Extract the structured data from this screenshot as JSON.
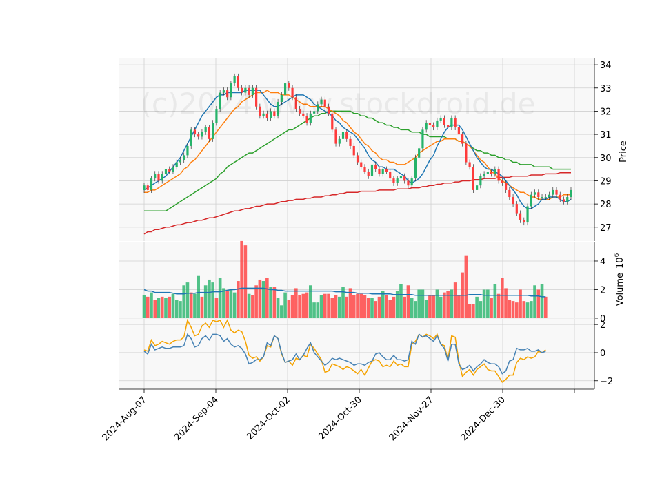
{
  "watermark": "(c)2024 www.stockdroid.de",
  "colors": {
    "up": "#26b36a",
    "down": "#ff3b3b",
    "ma_short": "#1f77b4",
    "ma_mid": "#ff7f0e",
    "ma_long": "#2ca02c",
    "ma_200": "#d62728",
    "vol_ma": "#1f77b4",
    "osc_a": "#f5a300",
    "osc_b": "#4682b4",
    "panel_bg": "#f8f8f8",
    "grid": "#d0d0d0"
  },
  "chart_data": [
    {
      "type": "candlestick",
      "panel": "price",
      "ylabel": "Price",
      "ylim": [
        26.4,
        34.3
      ],
      "yticks": [
        27,
        28,
        29,
        30,
        31,
        32,
        33,
        34
      ],
      "grid": true,
      "x_tick_labels": [
        "2024-Aug-07",
        "2024-Sep-04",
        "2024-Oct-02",
        "2024-Oct-30",
        "2024-Nov-27",
        "2024-Dec-30"
      ],
      "close": [
        28.8,
        28.6,
        29.1,
        29.3,
        29.0,
        29.3,
        29.5,
        29.4,
        29.6,
        29.8,
        29.9,
        30.1,
        30.5,
        31.2,
        31.0,
        30.9,
        31.1,
        31.3,
        30.8,
        31.5,
        32.1,
        32.8,
        32.9,
        32.6,
        33.2,
        33.5,
        33.0,
        32.8,
        33.0,
        32.7,
        33.0,
        32.2,
        31.8,
        31.9,
        31.7,
        32.0,
        31.8,
        32.4,
        32.7,
        33.2,
        33.0,
        32.6,
        32.1,
        31.9,
        31.8,
        31.5,
        31.9,
        32.0,
        32.3,
        32.5,
        32.2,
        31.9,
        31.2,
        30.6,
        30.8,
        31.1,
        30.8,
        30.5,
        30.1,
        29.8,
        29.6,
        29.4,
        29.2,
        29.7,
        29.5,
        29.3,
        29.5,
        29.4,
        29.1,
        28.9,
        29.1,
        29.2,
        29.0,
        28.8,
        29.1,
        30.0,
        30.4,
        31.2,
        31.5,
        31.4,
        31.3,
        31.6,
        31.7,
        31.4,
        31.3,
        31.7,
        31.3,
        31.0,
        30.6,
        29.8,
        29.6,
        28.6,
        28.8,
        29.2,
        29.3,
        29.4,
        29.3,
        29.5,
        29.0,
        28.9,
        28.6,
        28.3,
        28.0,
        27.6,
        27.3,
        27.2,
        27.9,
        28.4,
        28.5,
        28.3,
        28.3,
        28.3,
        28.4,
        28.6,
        28.4,
        28.2,
        28.1,
        28.3,
        28.6
      ],
      "open": [
        28.6,
        28.8,
        28.6,
        29.1,
        29.3,
        29.0,
        29.3,
        29.5,
        29.4,
        29.6,
        29.8,
        29.9,
        30.1,
        30.5,
        31.2,
        31.0,
        30.9,
        31.1,
        31.3,
        30.8,
        31.5,
        32.1,
        32.8,
        32.9,
        32.6,
        33.2,
        33.5,
        33.0,
        32.8,
        33.0,
        32.7,
        33.0,
        32.2,
        31.8,
        31.9,
        31.7,
        32.0,
        31.8,
        32.4,
        32.7,
        33.2,
        33.0,
        32.6,
        32.1,
        31.9,
        31.8,
        31.5,
        31.9,
        32.0,
        32.3,
        32.5,
        32.2,
        31.9,
        31.2,
        30.6,
        30.8,
        31.1,
        30.8,
        30.5,
        30.1,
        29.8,
        29.6,
        29.4,
        29.2,
        29.7,
        29.5,
        29.3,
        29.5,
        29.4,
        29.1,
        28.9,
        29.1,
        29.2,
        29.0,
        28.8,
        29.1,
        30.0,
        30.4,
        31.2,
        31.5,
        31.4,
        31.3,
        31.6,
        31.7,
        31.4,
        31.3,
        31.7,
        31.3,
        31.0,
        30.6,
        29.8,
        29.6,
        28.6,
        28.8,
        29.2,
        29.3,
        29.4,
        29.3,
        29.5,
        29.0,
        28.9,
        28.6,
        28.3,
        28.0,
        27.6,
        27.3,
        27.2,
        27.9,
        28.4,
        28.5,
        28.3,
        28.3,
        28.3,
        28.4,
        28.6,
        28.4,
        28.2,
        28.1,
        28.3
      ],
      "ma_short": [
        28.6,
        28.7,
        28.8,
        28.9,
        29.0,
        29.1,
        29.2,
        29.4,
        29.6,
        29.8,
        30.0,
        30.3,
        30.6,
        30.9,
        31.2,
        31.5,
        31.8,
        32.0,
        32.2,
        32.4,
        32.6,
        32.7,
        32.7,
        32.8,
        32.8,
        32.8,
        32.8,
        32.8,
        32.9,
        32.9,
        32.9,
        32.9,
        32.9,
        32.7,
        32.5,
        32.3,
        32.2,
        32.2,
        32.3,
        32.4,
        32.5,
        32.6,
        32.7,
        32.7,
        32.7,
        32.6,
        32.5,
        32.3,
        32.2,
        32.1,
        32.0,
        31.9,
        31.8,
        31.6,
        31.5,
        31.3,
        31.2,
        31.1,
        31.0,
        30.8,
        30.6,
        30.4,
        30.1,
        29.9,
        29.8,
        29.6,
        29.6,
        29.5,
        29.5,
        29.5,
        29.4,
        29.3,
        29.2,
        29.0,
        28.9,
        29.0,
        29.1,
        29.3,
        29.6,
        29.9,
        30.1,
        30.5,
        30.8,
        31.1,
        31.3,
        31.4,
        31.4,
        31.4,
        31.2,
        30.9,
        30.6,
        30.3,
        30.0,
        29.8,
        29.6,
        29.5,
        29.5,
        29.4,
        29.3,
        29.2,
        29.0,
        28.8,
        28.6,
        28.4,
        28.1,
        27.9,
        27.8,
        27.8,
        27.9,
        28.0,
        28.2,
        28.2,
        28.3,
        28.3,
        28.3,
        28.2,
        28.1,
        28.1,
        28.2
      ],
      "ma_mid": [
        28.5,
        28.5,
        28.6,
        28.6,
        28.7,
        28.8,
        28.9,
        29.0,
        29.1,
        29.2,
        29.3,
        29.5,
        29.6,
        29.8,
        29.9,
        30.1,
        30.3,
        30.5,
        30.7,
        30.9,
        31.1,
        31.3,
        31.5,
        31.7,
        31.9,
        32.1,
        32.2,
        32.4,
        32.5,
        32.6,
        32.7,
        32.8,
        32.8,
        32.8,
        32.9,
        32.8,
        32.8,
        32.8,
        32.7,
        32.7,
        32.7,
        32.6,
        32.5,
        32.4,
        32.3,
        32.3,
        32.2,
        32.2,
        32.2,
        32.2,
        32.2,
        32.1,
        32.0,
        31.9,
        31.8,
        31.6,
        31.5,
        31.3,
        31.1,
        31.0,
        30.8,
        30.6,
        30.5,
        30.3,
        30.2,
        30.0,
        29.9,
        29.9,
        29.8,
        29.8,
        29.7,
        29.7,
        29.7,
        29.8,
        29.9,
        30.0,
        30.2,
        30.3,
        30.4,
        30.5,
        30.6,
        30.7,
        30.7,
        30.8,
        30.8,
        30.8,
        30.8,
        30.7,
        30.7,
        30.6,
        30.5,
        30.3,
        30.1,
        29.9,
        29.8,
        29.6,
        29.4,
        29.3,
        29.1,
        29.0,
        28.9,
        28.8,
        28.7,
        28.6,
        28.5,
        28.5,
        28.4,
        28.3,
        28.3,
        28.2,
        28.2,
        28.2,
        28.2,
        28.3,
        28.3,
        28.3,
        28.4,
        28.4,
        28.4
      ],
      "ma_long": [
        27.7,
        27.7,
        27.7,
        27.7,
        27.7,
        27.7,
        27.7,
        27.8,
        27.9,
        28.0,
        28.1,
        28.2,
        28.3,
        28.4,
        28.5,
        28.6,
        28.7,
        28.8,
        28.9,
        29.0,
        29.1,
        29.3,
        29.4,
        29.6,
        29.7,
        29.8,
        29.9,
        30.0,
        30.1,
        30.2,
        30.2,
        30.3,
        30.4,
        30.5,
        30.6,
        30.7,
        30.8,
        30.9,
        31.0,
        31.1,
        31.2,
        31.2,
        31.3,
        31.4,
        31.5,
        31.6,
        31.7,
        31.8,
        31.8,
        31.9,
        31.9,
        32.0,
        32.0,
        32.0,
        32.0,
        32.0,
        32.0,
        32.0,
        31.9,
        31.9,
        31.8,
        31.8,
        31.7,
        31.7,
        31.6,
        31.5,
        31.5,
        31.4,
        31.4,
        31.3,
        31.3,
        31.2,
        31.2,
        31.2,
        31.1,
        31.1,
        31.1,
        31.0,
        31.0,
        30.9,
        30.9,
        30.9,
        30.9,
        30.9,
        30.8,
        30.8,
        30.8,
        30.7,
        30.7,
        30.6,
        30.5,
        30.4,
        30.3,
        30.3,
        30.2,
        30.2,
        30.1,
        30.1,
        30.0,
        30.0,
        29.9,
        29.9,
        29.8,
        29.8,
        29.7,
        29.7,
        29.7,
        29.7,
        29.6,
        29.6,
        29.6,
        29.6,
        29.6,
        29.5,
        29.5,
        29.5,
        29.5,
        29.5,
        29.5
      ],
      "ma_200": [
        26.7,
        26.8,
        26.8,
        26.9,
        26.9,
        26.95,
        27.0,
        27.0,
        27.05,
        27.1,
        27.1,
        27.15,
        27.2,
        27.2,
        27.25,
        27.3,
        27.3,
        27.35,
        27.4,
        27.4,
        27.45,
        27.5,
        27.55,
        27.6,
        27.65,
        27.7,
        27.7,
        27.75,
        27.8,
        27.8,
        27.85,
        27.9,
        27.9,
        27.95,
        28.0,
        28.0,
        28.0,
        28.05,
        28.1,
        28.1,
        28.15,
        28.15,
        28.2,
        28.2,
        28.2,
        28.25,
        28.25,
        28.3,
        28.3,
        28.3,
        28.35,
        28.35,
        28.4,
        28.4,
        28.45,
        28.45,
        28.5,
        28.5,
        28.5,
        28.5,
        28.55,
        28.55,
        28.55,
        28.55,
        28.55,
        28.6,
        28.6,
        28.6,
        28.6,
        28.6,
        28.65,
        28.65,
        28.65,
        28.65,
        28.7,
        28.7,
        28.7,
        28.75,
        28.75,
        28.8,
        28.8,
        28.85,
        28.85,
        28.9,
        28.9,
        28.9,
        28.95,
        28.95,
        29.0,
        29.0,
        29.0,
        29.05,
        29.05,
        29.05,
        29.1,
        29.1,
        29.1,
        29.1,
        29.15,
        29.15,
        29.15,
        29.15,
        29.2,
        29.2,
        29.2,
        29.2,
        29.2,
        29.25,
        29.25,
        29.25,
        29.25,
        29.3,
        29.3,
        29.3,
        29.3,
        29.35,
        29.35,
        29.35,
        29.35
      ]
    },
    {
      "type": "bar",
      "panel": "volume",
      "ylabel": "Volume",
      "ylabel_exponent": "10^6",
      "ylim": [
        0,
        5.3
      ],
      "yticks": [
        0,
        2,
        4
      ],
      "volume": [
        1.6,
        1.5,
        1.8,
        1.3,
        1.4,
        1.5,
        1.4,
        1.5,
        1.7,
        1.3,
        1.2,
        2.3,
        2.5,
        1.8,
        1.7,
        3.0,
        1.5,
        2.3,
        2.7,
        2.5,
        1.4,
        2.8,
        2.1,
        1.9,
        2.0,
        1.8,
        2.6,
        5.4,
        5.1,
        1.7,
        1.6,
        2.3,
        2.7,
        2.6,
        2.8,
        2.2,
        2.2,
        1.4,
        0.9,
        1.8,
        1.3,
        1.6,
        2.1,
        1.6,
        1.7,
        1.8,
        2.3,
        1.1,
        1.1,
        1.6,
        1.7,
        1.7,
        1.4,
        1.6,
        1.5,
        2.2,
        1.5,
        2.1,
        1.6,
        1.7,
        1.7,
        1.6,
        1.4,
        1.4,
        1.2,
        1.5,
        1.9,
        1.6,
        1.3,
        1.5,
        1.9,
        2.4,
        1.5,
        2.3,
        1.4,
        1.2,
        2.0,
        2.0,
        1.3,
        1.6,
        1.6,
        2.0,
        1.5,
        1.8,
        1.9,
        2.0,
        2.5,
        1.6,
        3.2,
        4.4,
        1.0,
        1.0,
        1.5,
        1.2,
        2.0,
        2.0,
        1.4,
        2.4,
        1.7,
        2.8,
        2.1,
        1.3,
        1.2,
        1.1,
        2.0,
        1.2,
        1.1,
        1.2,
        2.3,
        2.0,
        2.4,
        1.5
      ],
      "vol_ma": [
        2.0,
        1.9,
        1.9,
        1.8,
        1.8,
        1.8,
        1.8,
        1.8,
        1.75,
        1.7,
        1.7,
        1.7,
        1.75,
        1.75,
        1.75,
        1.8,
        1.8,
        1.8,
        1.8,
        1.85,
        1.85,
        1.85,
        1.9,
        1.95,
        2.0,
        2.0,
        2.05,
        2.1,
        2.1,
        2.1,
        2.1,
        2.1,
        2.1,
        2.1,
        2.05,
        2.0,
        2.0,
        1.95,
        1.95,
        1.9,
        1.9,
        1.9,
        1.9,
        1.9,
        1.9,
        1.9,
        1.9,
        1.9,
        1.9,
        1.9,
        1.9,
        1.9,
        1.9,
        1.85,
        1.85,
        1.85,
        1.8,
        1.8,
        1.8,
        1.75,
        1.75,
        1.75,
        1.75,
        1.7,
        1.7,
        1.7,
        1.7,
        1.7,
        1.7,
        1.65,
        1.65,
        1.65,
        1.65,
        1.65,
        1.65,
        1.6,
        1.6,
        1.6,
        1.6,
        1.6,
        1.6,
        1.6,
        1.6,
        1.6,
        1.6,
        1.6,
        1.6,
        1.6,
        1.6,
        1.6,
        1.65,
        1.65,
        1.65,
        1.65,
        1.6,
        1.6,
        1.6,
        1.6,
        1.6,
        1.6,
        1.6,
        1.6,
        1.6,
        1.6,
        1.6,
        1.6,
        1.6,
        1.55,
        1.55,
        1.55,
        1.5,
        1.5
      ],
      "vol_direction": [
        1,
        -1,
        1,
        -1,
        1,
        -1,
        1,
        -1,
        1,
        1,
        1,
        1,
        1,
        -1,
        1,
        1,
        -1,
        1,
        1,
        1,
        -1,
        1,
        1,
        -1,
        1,
        1,
        -1,
        -1,
        -1,
        1,
        -1,
        -1,
        -1,
        1,
        -1,
        1,
        -1,
        1,
        1,
        1,
        -1,
        -1,
        -1,
        -1,
        -1,
        -1,
        1,
        1,
        1,
        1,
        -1,
        -1,
        -1,
        -1,
        1,
        1,
        -1,
        -1,
        -1,
        -1,
        -1,
        -1,
        -1,
        1,
        -1,
        -1,
        1,
        -1,
        -1,
        -1,
        1,
        1,
        -1,
        -1,
        1,
        1,
        1,
        1,
        1,
        -1,
        -1,
        1,
        1,
        -1,
        -1,
        1,
        -1,
        -1,
        -1,
        -1,
        -1,
        -1,
        1,
        1,
        1,
        1,
        -1,
        1,
        -1,
        -1,
        -1,
        -1,
        -1,
        -1,
        -1,
        -1,
        1,
        1,
        1,
        -1,
        1,
        -1,
        1,
        1
      ]
    },
    {
      "type": "line",
      "panel": "oscillator",
      "ylim": [
        -2.6,
        2.4
      ],
      "yticks": [
        -2,
        0,
        2
      ],
      "series_a": [
        0.2,
        0.1,
        0.9,
        0.5,
        0.6,
        0.8,
        0.7,
        0.6,
        0.8,
        0.9,
        0.9,
        1.1,
        2.3,
        1.8,
        1.2,
        1.3,
        1.9,
        2.1,
        1.8,
        2.3,
        2.2,
        2.3,
        1.8,
        2.3,
        1.6,
        1.4,
        1.6,
        1.5,
        0.8,
        -0.2,
        -0.4,
        -0.3,
        -0.6,
        -0.3,
        0.5,
        0.4,
        1.2,
        1.0,
        -0.1,
        -0.7,
        -0.6,
        -0.9,
        -0.4,
        -0.5,
        -0.2,
        -0.3,
        0.6,
        0.3,
        -0.1,
        -0.5,
        -1.4,
        -1.3,
        -0.8,
        -0.9,
        -1.0,
        -1.2,
        -1.0,
        -1.1,
        -1.3,
        -1.5,
        -1.2,
        -1.6,
        -1.1,
        -0.6,
        -0.5,
        -0.6,
        -1.0,
        -0.9,
        -1.0,
        -0.6,
        -0.9,
        -0.8,
        -1.0,
        -1.0,
        0.6,
        0.8,
        1.3,
        1.1,
        1.3,
        1.2,
        1.0,
        1.3,
        0.6,
        0.5,
        -0.5,
        1.2,
        1.1,
        -0.6,
        -1.7,
        -1.4,
        -1.2,
        -1.6,
        -1.2,
        -1.0,
        -0.8,
        -1.2,
        -1.3,
        -1.3,
        -1.7,
        -2.1,
        -1.9,
        -1.6,
        -1.6,
        -0.7,
        -0.4,
        -0.5,
        -0.3,
        -0.4,
        -0.3,
        0.1,
        0.0,
        0.2
      ],
      "series_b": [
        0.1,
        -0.1,
        0.6,
        0.2,
        0.3,
        0.4,
        0.3,
        0.3,
        0.4,
        0.4,
        0.4,
        0.5,
        1.3,
        1.0,
        0.4,
        0.5,
        1.0,
        1.2,
        0.9,
        1.3,
        1.3,
        1.2,
        0.8,
        1.0,
        0.6,
        0.4,
        0.5,
        0.3,
        -0.1,
        -0.8,
        -0.7,
        -0.5,
        -0.5,
        -0.3,
        0.7,
        0.5,
        1.2,
        1.0,
        0.0,
        -0.7,
        -0.6,
        -0.5,
        -0.1,
        -0.5,
        -0.2,
        0.3,
        0.7,
        0.0,
        -0.3,
        -0.6,
        -0.9,
        -0.7,
        -0.4,
        -0.5,
        -0.4,
        -0.5,
        -0.6,
        -0.7,
        -0.9,
        -0.8,
        -0.8,
        -0.9,
        -0.7,
        -0.6,
        -0.1,
        0.0,
        -0.3,
        -0.5,
        -0.5,
        -0.2,
        -0.5,
        -0.5,
        -0.6,
        -0.5,
        0.8,
        0.6,
        1.3,
        1.1,
        1.2,
        1.0,
        0.8,
        1.2,
        0.6,
        0.3,
        -0.6,
        0.6,
        0.6,
        -0.8,
        -1.2,
        -1.1,
        -0.9,
        -1.3,
        -1.0,
        -0.8,
        -0.5,
        -0.7,
        -0.8,
        -0.8,
        -1.0,
        -1.5,
        -1.3,
        -0.6,
        -0.5,
        0.3,
        0.2,
        0.2,
        0.3,
        0.1,
        0.1,
        0.2,
        0.0,
        0.1
      ]
    }
  ]
}
